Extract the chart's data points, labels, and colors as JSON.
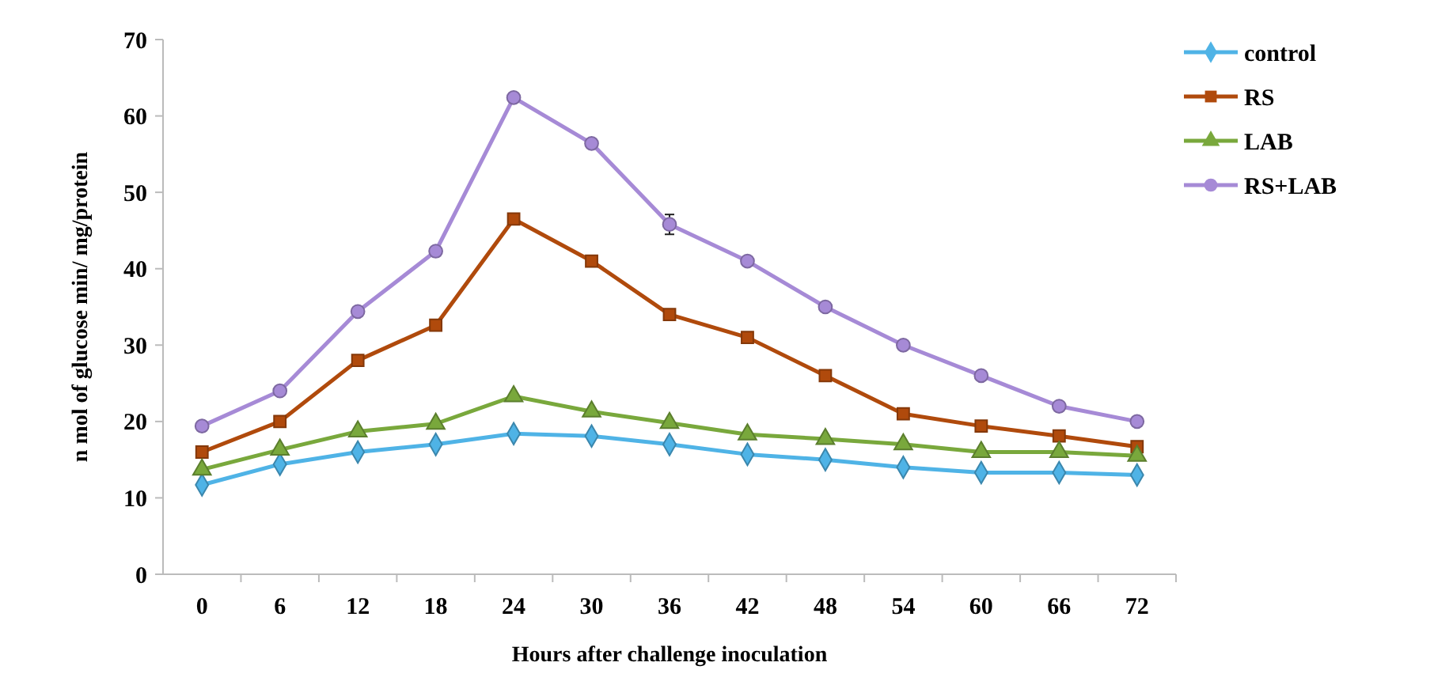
{
  "chart_data": {
    "type": "line",
    "xlabel": "Hours after challenge inoculation",
    "ylabel": "n mol of glucose min/ mg/protein",
    "categories": [
      "0",
      "6",
      "12",
      "18",
      "24",
      "30",
      "36",
      "42",
      "48",
      "54",
      "60",
      "66",
      "72"
    ],
    "ylim": [
      0,
      70
    ],
    "yticks": [
      0,
      10,
      20,
      30,
      40,
      50,
      60,
      70
    ],
    "grid": false,
    "legend": "top right",
    "line_style": "solid",
    "series": [
      {
        "name": "control",
        "color": "#4fb3e6",
        "marker": "diamond",
        "values": [
          11.7,
          14.4,
          16,
          17,
          18.4,
          18.1,
          17,
          15.7,
          15,
          14,
          13.3,
          13.3,
          13
        ]
      },
      {
        "name": "RS",
        "color": "#b04a0c",
        "marker": "square",
        "values": [
          16,
          20,
          28,
          32.6,
          46.5,
          41,
          34,
          31,
          26,
          21,
          19.4,
          18.1,
          16.7
        ]
      },
      {
        "name": "LAB",
        "color": "#79a83c",
        "marker": "triangle",
        "values": [
          13.7,
          16.3,
          18.7,
          19.7,
          23.3,
          21.3,
          19.8,
          18.3,
          17.7,
          17,
          16,
          16,
          15.5
        ]
      },
      {
        "name": "RS+LAB",
        "color": "#a68ad6",
        "marker": "circle",
        "values": [
          19.4,
          24,
          34.4,
          42.3,
          62.4,
          56.4,
          45.8,
          41,
          35,
          30,
          26,
          22,
          20
        ],
        "errors": [
          null,
          null,
          null,
          null,
          null,
          null,
          1.3,
          null,
          null,
          null,
          null,
          null,
          null
        ]
      }
    ]
  }
}
